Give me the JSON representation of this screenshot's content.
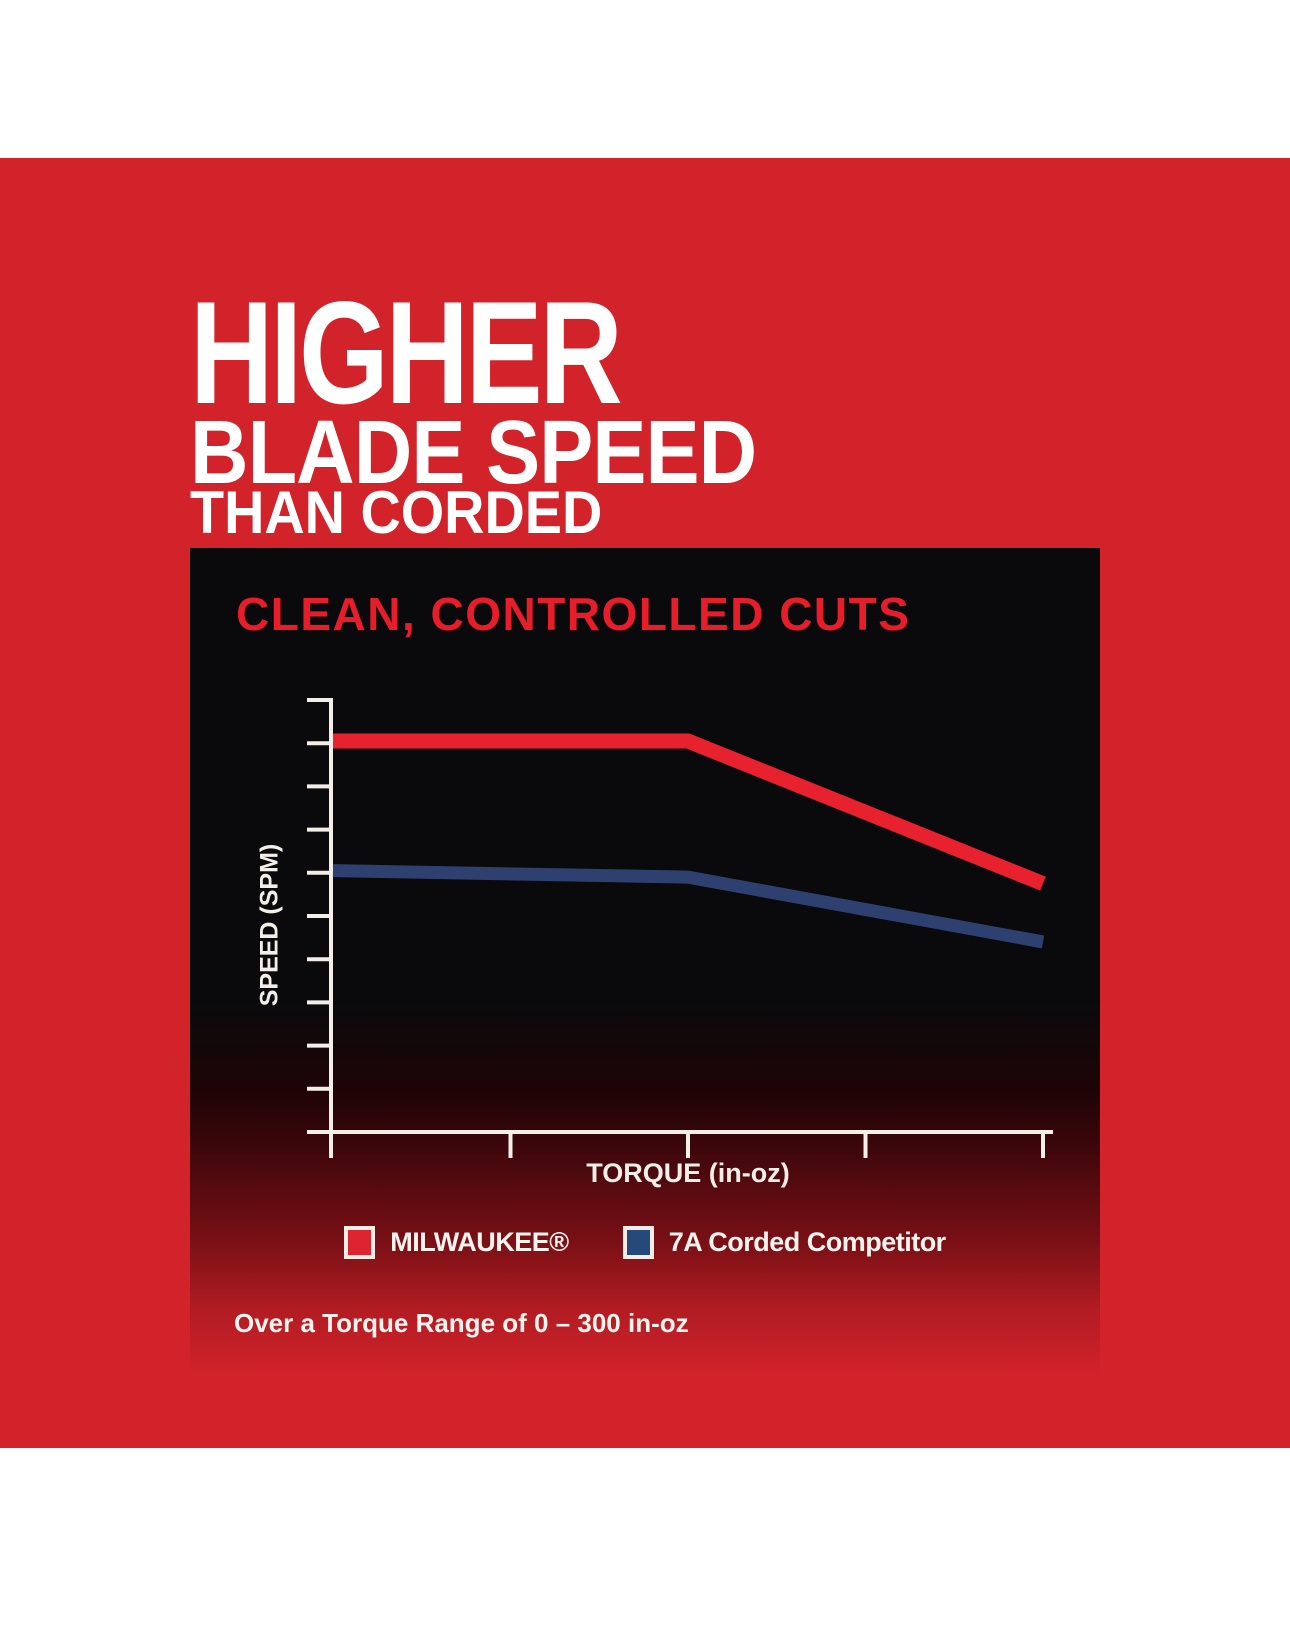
{
  "headline": {
    "line1": "HIGHER",
    "line2": "BLADE SPEED",
    "line3": "THAN CORDED"
  },
  "chart": {
    "title": "CLEAN, CONTROLLED CUTS",
    "ylabel": "SPEED (SPM)",
    "xlabel": "TORQUE (in-oz)"
  },
  "legend": {
    "items": [
      {
        "label": "MILWAUKEE®",
        "color": "#dd2430"
      },
      {
        "label": "7A Corded Competitor",
        "color": "#26497b"
      }
    ]
  },
  "footnote": "Over a Torque Range of 0 – 300 in-oz",
  "colors": {
    "background_red": "#d2222a",
    "panel_black": "#0a0a0c",
    "title_red": "#e71e29",
    "milwaukee_line_red": "#e8212e",
    "competitor_line_blue": "#2e4070",
    "axis_white": "#f3efe8",
    "text_white": "#ffffff"
  },
  "chart_data": {
    "type": "line",
    "title": "CLEAN, CONTROLLED CUTS",
    "xlabel": "TORQUE (in-oz)",
    "ylabel": "SPEED (SPM)",
    "xlim": [
      0,
      300
    ],
    "ylim": [
      0,
      10
    ],
    "x_tick_count": 5,
    "y_tick_count": 11,
    "axis_numeric_labels": false,
    "grid": false,
    "legend_position": "below",
    "note": "Axes carry tick marks but no numeric labels; torque range 0–300 in-oz stated in footnote. Speed values are relative axis units (0–10).",
    "series": [
      {
        "name": "MILWAUKEE®",
        "color": "#e8212e",
        "x": [
          0,
          150,
          300
        ],
        "y": [
          9.05,
          9.05,
          5.75
        ]
      },
      {
        "name": "7A Corded Competitor",
        "color": "#2e4070",
        "x": [
          0,
          150,
          300
        ],
        "y": [
          6.05,
          5.9,
          4.4
        ]
      }
    ]
  }
}
